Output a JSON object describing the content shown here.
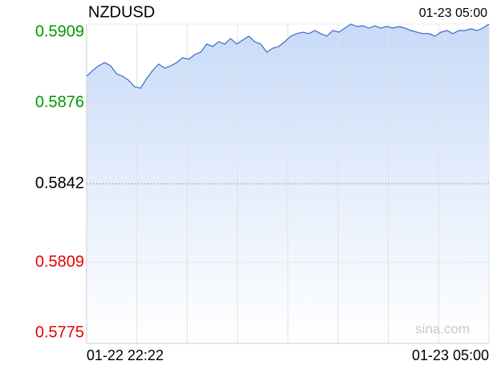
{
  "chart_data": {
    "type": "area",
    "title": "NZDUSD",
    "time_label": "01-23 05:00",
    "x_labels": [
      "01-22 22:22",
      "01-23 05:00"
    ],
    "watermark": "sina.com",
    "color": "#3a6bc8",
    "fill_top": "#c7daf8",
    "ylim": [
      0.5775,
      0.5909
    ],
    "yticks": [
      0.5909,
      0.5876,
      0.5842,
      0.5809,
      0.5775
    ],
    "ytick_colors": [
      "#009900",
      "#009900",
      "#000000",
      "#e60000",
      "#e60000"
    ],
    "grid": true,
    "xgrid_divisions": 8,
    "values": [
      0.58871,
      0.58895,
      0.58915,
      0.58928,
      0.58915,
      0.58881,
      0.58871,
      0.58854,
      0.58827,
      0.58821,
      0.58861,
      0.58895,
      0.58922,
      0.58905,
      0.58915,
      0.58928,
      0.58949,
      0.58942,
      0.58962,
      0.58972,
      0.59006,
      0.58996,
      0.59016,
      0.59006,
      0.59029,
      0.59006,
      0.59023,
      0.59039,
      0.59016,
      0.59006,
      0.58972,
      0.58989,
      0.58996,
      0.59016,
      0.59039,
      0.5905,
      0.59056,
      0.5905,
      0.59063,
      0.5905,
      0.59039,
      0.59063,
      0.59056,
      0.59073,
      0.5909,
      0.5908,
      0.59083,
      0.59073,
      0.59083,
      0.59073,
      0.5908,
      0.59073,
      0.5908,
      0.59073,
      0.59063,
      0.59056,
      0.5905,
      0.5905,
      0.59039,
      0.59056,
      0.59063,
      0.5905,
      0.59063,
      0.59063,
      0.5907,
      0.59063,
      0.59073,
      0.5909
    ]
  }
}
